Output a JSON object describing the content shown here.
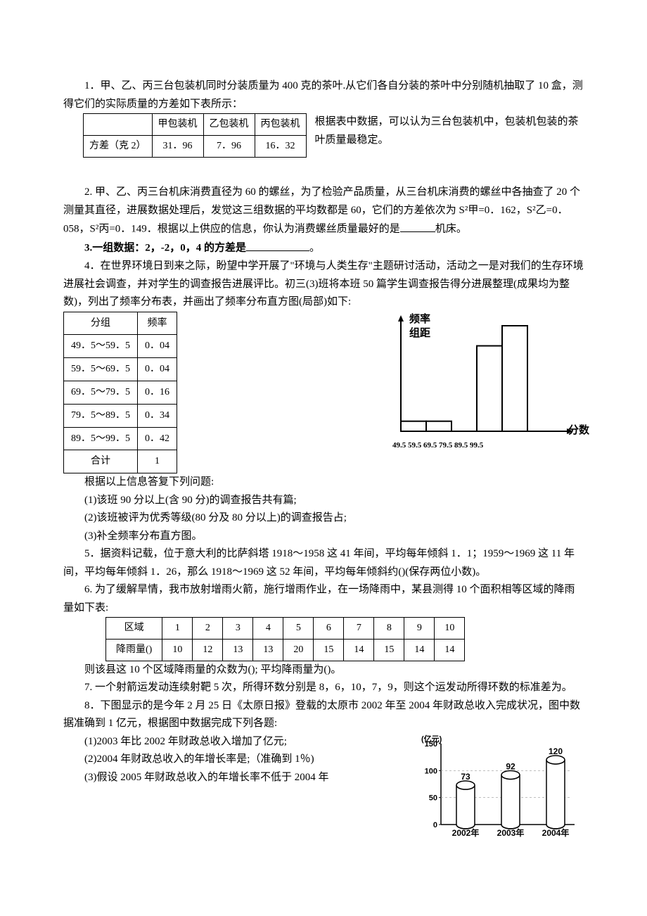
{
  "q1": {
    "intro": "1．甲、乙、丙三台包装机同时分装质量为 400 克的茶叶.从它们各自分装的茶叶中分别随机抽取了 10 盒，测得它们的实际质量的方差如下表所示：",
    "table": {
      "headers": [
        "",
        "甲包装机",
        "乙包装机",
        "丙包装机"
      ],
      "row_label": "方差（克 2）",
      "values": [
        "31．96",
        "7．96",
        "16．32"
      ]
    },
    "side": "根据表中数据，可以认为三台包装机中，包装机包装的茶叶质量最稳定。"
  },
  "q2": "2. 甲、乙、丙三台机床消费直径为 60 的螺丝，为了检验产品质量，从三台机床消费的螺丝中各抽查了 20 个测量其直径，进展数据处理后，发觉这三组数据的平均数都是 60，它们的方差依次为 S²甲=0．162，S²乙=0．058，S²丙=0．149．根据以上供应的信息，你认为消费螺丝质量最好的是",
  "q2_tail": "机床。",
  "q3_a": "3.一组数据：2，-2，0，4 的方差是",
  "q3_b": "。",
  "q4": {
    "intro": "4．在世界环境日到来之际，盼望中学开展了\"环境与人类生存\"主题研讨活动，活动之一是对我们的生存环境进展社会调查，并对学生的调查报告进展评比。初三(3)班将本班 50 篇学生调查报告得分进展整理(成果均为整数)，列出了频率分布表，并画出了频率分布直方图(局部)如下:",
    "table": {
      "headers": [
        "分组",
        "频率"
      ],
      "rows": [
        [
          "49．5～59．5",
          "0．04"
        ],
        [
          "59．5～69．5",
          "0．04"
        ],
        [
          "69．5～79．5",
          "0．16"
        ],
        [
          "79．5～89．5",
          "0．34"
        ],
        [
          "89．5～99．5",
          "0．42"
        ],
        [
          "合计",
          "1"
        ]
      ]
    },
    "chart": {
      "ylabel1": "频率",
      "ylabel2": "组距",
      "xlabel": "分数",
      "xticks": "49.5 59.5 69.5 79.5 89.5 99.5",
      "bars": [
        0.04,
        0.04,
        0,
        0.34,
        0.42
      ],
      "bar_color": "#ffffff",
      "stroke": "#000000",
      "axis_color": "#000000"
    },
    "after": "根据以上信息答复下列问题:",
    "sub1": "(1)该班 90 分以上(含 90 分)的调查报告共有篇;",
    "sub2": "(2)该班被评为优秀等级(80 分及 80 分以上)的调查报告占;",
    "sub3": "(3)补全频率分布直方图。"
  },
  "q5": "5．据资料记载，位于意大利的比萨斜塔 1918～1958 这 41 年间，平均每年倾斜 1．1；1959～1969 这 11 年间，平均每年倾斜 1．26，那么 1918～1969 这 52 年间，平均每年倾斜约()(保存两位小数)。",
  "q6": {
    "intro": "6. 为了缓解旱情，我市放射增雨火箭，施行增雨作业，在一场降雨中，某县测得 10 个面积相等区域的降雨量如下表:",
    "headers": [
      "区域",
      "1",
      "2",
      "3",
      "4",
      "5",
      "6",
      "7",
      "8",
      "9",
      "10"
    ],
    "row_label": "降雨量()",
    "values": [
      "10",
      "12",
      "13",
      "13",
      "20",
      "15",
      "14",
      "15",
      "14",
      "14"
    ],
    "after": "则该县这 10 个区域降雨量的众数为(); 平均降雨量为()。"
  },
  "q7": "7. 一个射箭运发动连续射靶 5 次，所得环数分别是 8，6，10，7，9，则这个运发动所得环数的标准差为。",
  "q8": {
    "intro": "8．下图显示的是今年 2 月 25 日《太原日报》登载的太原市 2002 年至 2004 年财政总收入完成状况，图中数据准确到 1 亿元，根据图中数据完成下列各题:",
    "sub1": "(1)2003 年比 2002 年财政总收入增加了亿元;",
    "sub2": "(2)2004 年财政总收入的年增长率是;（准确到 1％)",
    "sub3": "(3)假设 2005 年财政总收入的年增长率不低于 2004 年",
    "chart": {
      "ylabel": "(亿元)",
      "yticks": [
        "150",
        "100",
        "50",
        "0"
      ],
      "xticks": [
        "2002年",
        "2003年",
        "2004年"
      ],
      "values": [
        73,
        92,
        120
      ],
      "labels": [
        "73",
        "92",
        "120"
      ],
      "ylim": [
        0,
        150
      ],
      "bar_fill": "#ffffff",
      "bar_stroke": "#000000",
      "axis_color": "#000000"
    }
  }
}
